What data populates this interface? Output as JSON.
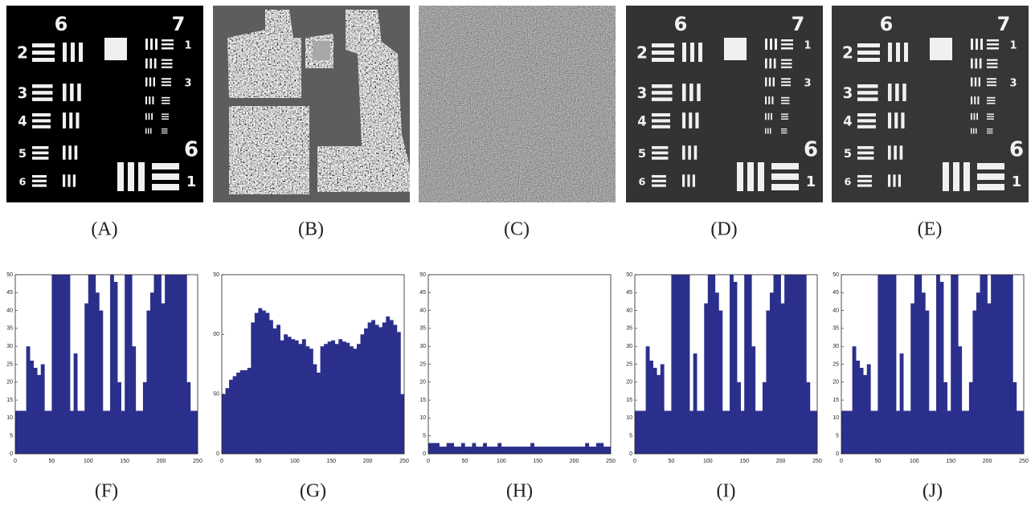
{
  "images": [
    {
      "caption": "(A)",
      "background": "#000000"
    },
    {
      "caption": "(B)"
    },
    {
      "caption": "(C)"
    },
    {
      "caption": "(D)",
      "background": "#333333"
    },
    {
      "caption": "(E)",
      "background": "#363636"
    }
  ],
  "target": {
    "group_labels": [
      "6",
      "7"
    ],
    "row_labels": [
      "2",
      "3",
      "4",
      "5",
      "6"
    ],
    "small_labels": [
      "1",
      "3"
    ],
    "corner_labels": [
      "6",
      "1"
    ]
  },
  "chart_data": [
    {
      "type": "histogram",
      "caption": "(F)",
      "color": "#2b2f8c",
      "bins": [
        0,
        5,
        10,
        15,
        20,
        25,
        30,
        35,
        40,
        45,
        50,
        55,
        60,
        65,
        70,
        75,
        80,
        85,
        90,
        95,
        100,
        105,
        110,
        115,
        120,
        125,
        130,
        135,
        140,
        145,
        150,
        155,
        160,
        165,
        170,
        175,
        180,
        185,
        190,
        195,
        200,
        205,
        210,
        215,
        220,
        225,
        230,
        235,
        240,
        245,
        250
      ],
      "values": [
        12,
        12,
        12,
        30,
        26,
        24,
        22,
        25,
        12,
        12,
        50,
        50,
        50,
        50,
        50,
        12,
        28,
        12,
        12,
        42,
        50,
        50,
        45,
        40,
        12,
        12,
        50,
        48,
        20,
        12,
        50,
        50,
        30,
        12,
        12,
        20,
        40,
        45,
        50,
        50,
        42,
        50,
        50,
        50,
        50,
        50,
        50,
        20,
        12,
        12
      ],
      "xlim": [
        0,
        250
      ],
      "ylim": [
        0,
        50
      ],
      "xticks": [
        0,
        50,
        100,
        150,
        200,
        250
      ],
      "yticks": [
        0,
        5,
        10,
        15,
        20,
        25,
        30,
        35,
        40,
        45,
        50
      ]
    },
    {
      "type": "histogram",
      "caption": "(G)",
      "color": "#2b2f8c",
      "bins": [
        0,
        5,
        10,
        15,
        20,
        25,
        30,
        35,
        40,
        45,
        50,
        55,
        60,
        65,
        70,
        75,
        80,
        85,
        90,
        95,
        100,
        105,
        110,
        115,
        120,
        125,
        130,
        135,
        140,
        145,
        150,
        155,
        160,
        165,
        170,
        175,
        180,
        185,
        190,
        195,
        200,
        205,
        210,
        215,
        220,
        225,
        230,
        235,
        240,
        245,
        250
      ],
      "values": [
        50,
        55,
        62,
        65,
        68,
        70,
        70,
        72,
        110,
        118,
        122,
        120,
        118,
        112,
        105,
        108,
        95,
        100,
        98,
        96,
        95,
        92,
        96,
        90,
        88,
        75,
        68,
        90,
        92,
        94,
        95,
        92,
        96,
        94,
        93,
        90,
        88,
        92,
        100,
        105,
        110,
        112,
        108,
        106,
        110,
        115,
        112,
        108,
        102,
        50
      ],
      "xlim": [
        0,
        250
      ],
      "ylim": [
        0,
        150
      ],
      "xticks": [
        0,
        50,
        100,
        150,
        200,
        250
      ],
      "yticks": [
        0,
        50,
        {
          "value": 100,
          "label": "00"
        },
        {
          "value": 150,
          "label": "50"
        }
      ]
    },
    {
      "type": "histogram",
      "caption": "(H)",
      "color": "#2b2f8c",
      "bins": [
        0,
        5,
        10,
        15,
        20,
        25,
        30,
        35,
        40,
        45,
        50,
        55,
        60,
        65,
        70,
        75,
        80,
        85,
        90,
        95,
        100,
        105,
        110,
        115,
        120,
        125,
        130,
        135,
        140,
        145,
        150,
        155,
        160,
        165,
        170,
        175,
        180,
        185,
        190,
        195,
        200,
        205,
        210,
        215,
        220,
        225,
        230,
        235,
        240,
        245,
        250
      ],
      "values": [
        3,
        3,
        3,
        2,
        2,
        3,
        3,
        2,
        2,
        3,
        2,
        2,
        3,
        2,
        2,
        3,
        2,
        2,
        2,
        3,
        2,
        2,
        2,
        2,
        2,
        2,
        2,
        2,
        3,
        2,
        2,
        2,
        2,
        2,
        2,
        2,
        2,
        2,
        2,
        2,
        2,
        2,
        2,
        3,
        2,
        2,
        3,
        3,
        2,
        2
      ],
      "xlim": [
        0,
        250
      ],
      "ylim": [
        0,
        50
      ],
      "xticks": [
        0,
        50,
        100,
        150,
        200,
        250
      ],
      "yticks": [
        0,
        5,
        10,
        15,
        20,
        25,
        30,
        35,
        40,
        45,
        50
      ]
    },
    {
      "type": "histogram",
      "caption": "(I)",
      "color": "#2b2f8c",
      "bins": [
        0,
        5,
        10,
        15,
        20,
        25,
        30,
        35,
        40,
        45,
        50,
        55,
        60,
        65,
        70,
        75,
        80,
        85,
        90,
        95,
        100,
        105,
        110,
        115,
        120,
        125,
        130,
        135,
        140,
        145,
        150,
        155,
        160,
        165,
        170,
        175,
        180,
        185,
        190,
        195,
        200,
        205,
        210,
        215,
        220,
        225,
        230,
        235,
        240,
        245,
        250
      ],
      "values": [
        12,
        12,
        12,
        30,
        26,
        24,
        22,
        25,
        12,
        12,
        50,
        50,
        50,
        50,
        50,
        12,
        28,
        12,
        12,
        42,
        50,
        50,
        45,
        40,
        12,
        12,
        50,
        48,
        20,
        12,
        50,
        50,
        30,
        12,
        12,
        20,
        40,
        45,
        50,
        50,
        42,
        50,
        50,
        50,
        50,
        50,
        50,
        20,
        12,
        12
      ],
      "xlim": [
        0,
        250
      ],
      "ylim": [
        0,
        50
      ],
      "xticks": [
        0,
        50,
        100,
        150,
        200,
        250
      ],
      "yticks": [
        0,
        5,
        10,
        15,
        20,
        25,
        30,
        35,
        40,
        45,
        50
      ]
    },
    {
      "type": "histogram",
      "caption": "(J)",
      "color": "#2b2f8c",
      "bins": [
        0,
        5,
        10,
        15,
        20,
        25,
        30,
        35,
        40,
        45,
        50,
        55,
        60,
        65,
        70,
        75,
        80,
        85,
        90,
        95,
        100,
        105,
        110,
        115,
        120,
        125,
        130,
        135,
        140,
        145,
        150,
        155,
        160,
        165,
        170,
        175,
        180,
        185,
        190,
        195,
        200,
        205,
        210,
        215,
        220,
        225,
        230,
        235,
        240,
        245,
        250
      ],
      "values": [
        12,
        12,
        12,
        30,
        26,
        24,
        22,
        25,
        12,
        12,
        50,
        50,
        50,
        50,
        50,
        12,
        28,
        12,
        12,
        42,
        50,
        50,
        45,
        40,
        12,
        12,
        50,
        48,
        20,
        12,
        50,
        50,
        30,
        12,
        12,
        20,
        40,
        45,
        50,
        50,
        42,
        50,
        50,
        50,
        50,
        50,
        50,
        20,
        12,
        12
      ],
      "xlim": [
        0,
        250
      ],
      "ylim": [
        0,
        50
      ],
      "xticks": [
        0,
        50,
        100,
        150,
        200,
        250
      ],
      "yticks": [
        0,
        5,
        10,
        15,
        20,
        25,
        30,
        35,
        40,
        45,
        50
      ]
    }
  ]
}
